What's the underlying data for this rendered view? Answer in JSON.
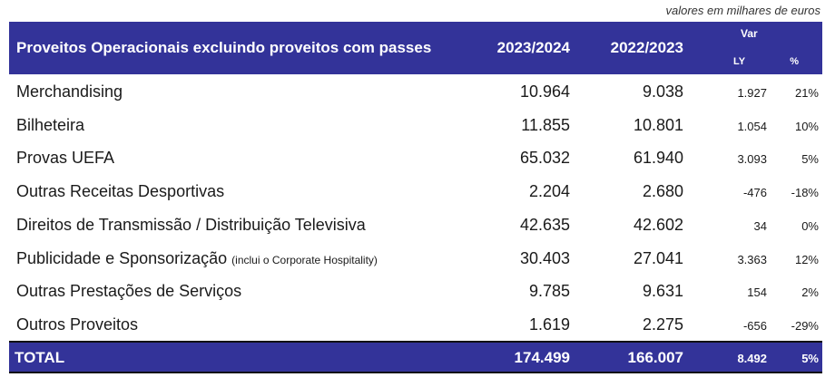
{
  "note": "valores em milhares de euros",
  "header": {
    "title": "Proveitos Operacionais excluindo proveitos com passes",
    "col1": "2023/2024",
    "col2": "2022/2023",
    "var": "Var",
    "ly": "LY",
    "pct": "%"
  },
  "rows": [
    {
      "label": "Merchandising",
      "note": "",
      "a": "10.964",
      "b": "9.038",
      "ly": "1.927",
      "pct": "21%"
    },
    {
      "label": "Bilheteira",
      "note": "",
      "a": "11.855",
      "b": "10.801",
      "ly": "1.054",
      "pct": "10%"
    },
    {
      "label": "Provas UEFA",
      "note": "",
      "a": "65.032",
      "b": "61.940",
      "ly": "3.093",
      "pct": "5%"
    },
    {
      "label": "Outras Receitas Desportivas",
      "note": "",
      "a": "2.204",
      "b": "2.680",
      "ly": "-476",
      "pct": "-18%"
    },
    {
      "label": "Direitos de Transmissão / Distribuição Televisiva",
      "note": "",
      "a": "42.635",
      "b": "42.602",
      "ly": "34",
      "pct": "0%"
    },
    {
      "label": "Publicidade e Sponsorização",
      "note": "(inclui o Corporate Hospitality)",
      "a": "30.403",
      "b": "27.041",
      "ly": "3.363",
      "pct": "12%"
    },
    {
      "label": "Outras Prestações de Serviços",
      "note": "",
      "a": "9.785",
      "b": "9.631",
      "ly": "154",
      "pct": "2%"
    },
    {
      "label": "Outros Proveitos",
      "note": "",
      "a": "1.619",
      "b": "2.275",
      "ly": "-656",
      "pct": "-29%"
    }
  ],
  "total": {
    "label": "TOTAL",
    "a": "174.499",
    "b": "166.007",
    "ly": "8.492",
    "pct": "5%"
  },
  "colors": {
    "header_bg": "#333399"
  }
}
